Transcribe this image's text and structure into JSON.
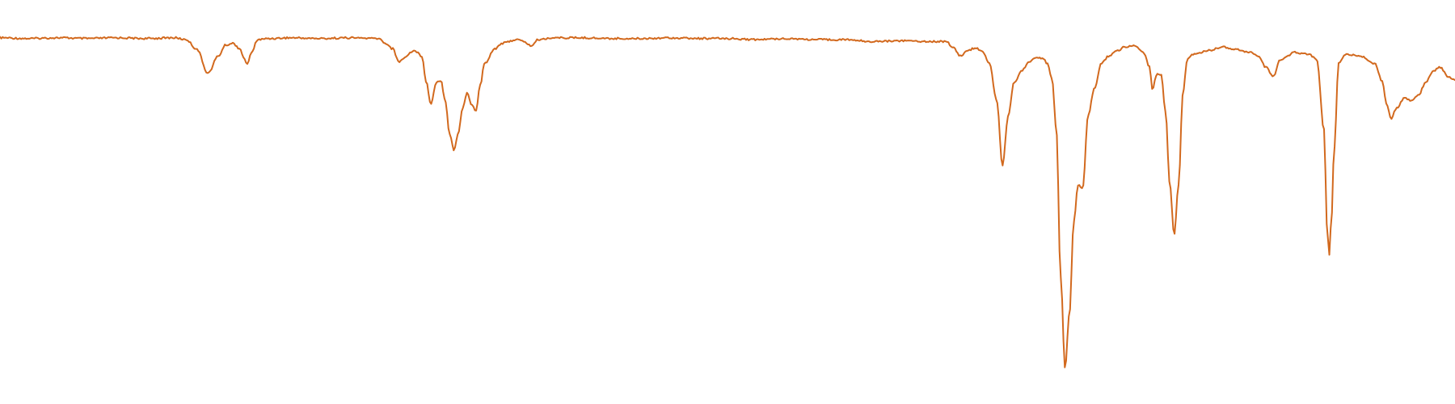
{
  "chart_data": {
    "type": "line",
    "title": "",
    "xlabel": "",
    "ylabel": "",
    "grid": false,
    "legend": "none",
    "xlim": [
      0,
      100
    ],
    "ylim": [
      0,
      100
    ],
    "series": [
      {
        "color": "#D2691E",
        "points": [
          [
            0.0,
            5.0
          ],
          [
            2.0,
            5.2
          ],
          [
            4.0,
            5.0
          ],
          [
            6.0,
            5.2
          ],
          [
            8.0,
            5.0
          ],
          [
            10.0,
            5.2
          ],
          [
            12.0,
            5.0
          ],
          [
            12.8,
            5.5
          ],
          [
            13.5,
            8.0
          ],
          [
            14.3,
            14.6
          ],
          [
            15.0,
            10.0
          ],
          [
            15.5,
            7.0
          ],
          [
            16.0,
            6.5
          ],
          [
            16.5,
            8.0
          ],
          [
            16.8,
            11.0
          ],
          [
            17.0,
            12.0
          ],
          [
            17.3,
            9.0
          ],
          [
            17.7,
            5.5
          ],
          [
            18.5,
            5.2
          ],
          [
            20.0,
            5.0
          ],
          [
            22.0,
            5.2
          ],
          [
            24.0,
            5.0
          ],
          [
            26.0,
            5.2
          ],
          [
            26.5,
            6.5
          ],
          [
            27.0,
            8.0
          ],
          [
            27.4,
            11.5
          ],
          [
            27.8,
            10.5
          ],
          [
            28.2,
            9.0
          ],
          [
            28.5,
            8.5
          ],
          [
            29.0,
            10.0
          ],
          [
            29.3,
            17.0
          ],
          [
            29.6,
            23.0
          ],
          [
            30.0,
            17.0
          ],
          [
            30.3,
            16.6
          ],
          [
            30.6,
            22.0
          ],
          [
            30.9,
            31.0
          ],
          [
            31.2,
            35.5
          ],
          [
            31.5,
            31.0
          ],
          [
            31.8,
            24.0
          ],
          [
            32.1,
            20.0
          ],
          [
            32.4,
            23.0
          ],
          [
            32.7,
            25.0
          ],
          [
            33.0,
            18.0
          ],
          [
            33.3,
            12.0
          ],
          [
            34.0,
            8.0
          ],
          [
            34.5,
            6.5
          ],
          [
            35.5,
            5.5
          ],
          [
            36.0,
            6.0
          ],
          [
            36.5,
            7.2
          ],
          [
            37.0,
            5.5
          ],
          [
            38.0,
            5.0
          ],
          [
            40.0,
            5.0
          ],
          [
            42.0,
            5.2
          ],
          [
            44.0,
            5.2
          ],
          [
            46.0,
            5.0
          ],
          [
            48.0,
            5.2
          ],
          [
            50.0,
            5.2
          ],
          [
            52.0,
            5.5
          ],
          [
            54.0,
            5.2
          ],
          [
            56.0,
            5.5
          ],
          [
            58.0,
            5.5
          ],
          [
            60.0,
            6.0
          ],
          [
            62.0,
            5.8
          ],
          [
            64.0,
            6.0
          ],
          [
            65.0,
            6.0
          ],
          [
            65.5,
            7.5
          ],
          [
            66.0,
            10.0
          ],
          [
            66.5,
            8.5
          ],
          [
            67.0,
            7.8
          ],
          [
            67.5,
            8.5
          ],
          [
            68.0,
            12.0
          ],
          [
            68.5,
            22.0
          ],
          [
            68.9,
            39.7
          ],
          [
            69.3,
            26.0
          ],
          [
            69.7,
            17.2
          ],
          [
            70.2,
            14.0
          ],
          [
            70.8,
            11.5
          ],
          [
            71.2,
            10.4
          ],
          [
            71.7,
            10.8
          ],
          [
            72.0,
            12.0
          ],
          [
            72.3,
            16.0
          ],
          [
            72.6,
            30.0
          ],
          [
            72.9,
            70.0
          ],
          [
            73.2,
            94.9
          ],
          [
            73.5,
            80.0
          ],
          [
            73.8,
            55.0
          ],
          [
            74.1,
            45.0
          ],
          [
            74.4,
            46.0
          ],
          [
            74.8,
            26.0
          ],
          [
            75.2,
            19.0
          ],
          [
            75.7,
            12.0
          ],
          [
            76.2,
            10.0
          ],
          [
            76.8,
            8.5
          ],
          [
            77.3,
            7.5
          ],
          [
            78.0,
            7.2
          ],
          [
            78.6,
            9.0
          ],
          [
            79.0,
            13.0
          ],
          [
            79.2,
            19.0
          ],
          [
            79.5,
            15.0
          ],
          [
            79.8,
            15.0
          ],
          [
            80.1,
            25.0
          ],
          [
            80.4,
            45.0
          ],
          [
            80.7,
            58.7
          ],
          [
            81.0,
            45.0
          ],
          [
            81.3,
            20.0
          ],
          [
            81.6,
            11.0
          ],
          [
            82.0,
            9.5
          ],
          [
            83.0,
            8.5
          ],
          [
            84.0,
            7.5
          ],
          [
            85.0,
            8.2
          ],
          [
            86.0,
            9.0
          ],
          [
            86.5,
            10.0
          ],
          [
            87.0,
            13.0
          ],
          [
            87.5,
            15.5
          ],
          [
            88.0,
            11.0
          ],
          [
            89.0,
            9.0
          ],
          [
            90.0,
            9.5
          ],
          [
            90.5,
            11.0
          ],
          [
            91.0,
            30.0
          ],
          [
            91.2,
            56.0
          ],
          [
            91.35,
            64.4
          ],
          [
            91.5,
            55.0
          ],
          [
            91.7,
            35.0
          ],
          [
            92.0,
            12.0
          ],
          [
            92.5,
            9.5
          ],
          [
            93.5,
            10.0
          ],
          [
            94.5,
            12.0
          ],
          [
            95.0,
            17.0
          ],
          [
            95.3,
            23.0
          ],
          [
            95.6,
            27.0
          ],
          [
            96.0,
            24.0
          ],
          [
            96.5,
            21.5
          ],
          [
            97.0,
            22.0
          ],
          [
            97.5,
            20.5
          ],
          [
            98.0,
            17.0
          ],
          [
            98.5,
            14.0
          ],
          [
            99.0,
            13.0
          ],
          [
            99.5,
            15.5
          ],
          [
            100.0,
            16.5
          ]
        ]
      }
    ]
  }
}
